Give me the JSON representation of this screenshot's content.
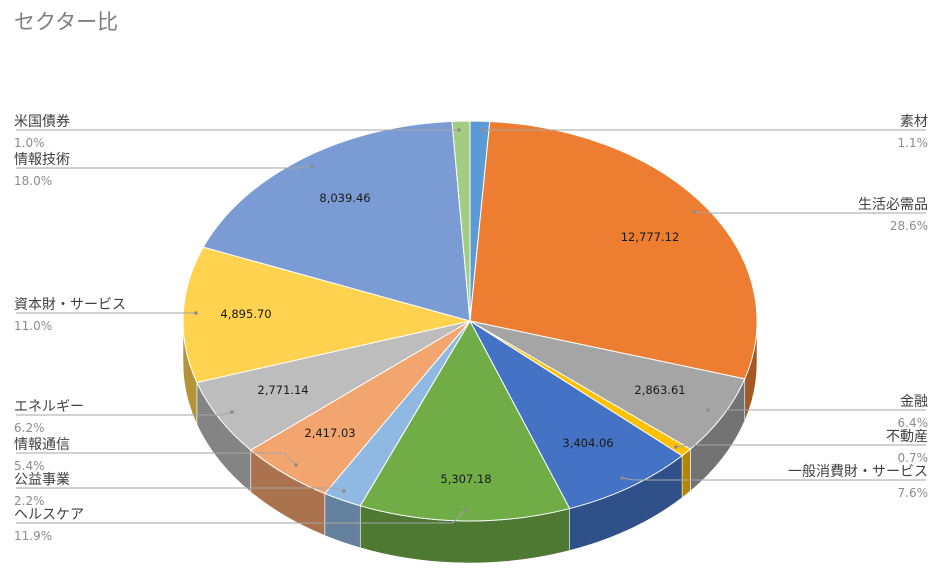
{
  "chart_data": {
    "type": "pie",
    "title": "セクター比",
    "series": [
      {
        "name": "素材",
        "value": null,
        "percent": "1.1%",
        "color": "#5b9bd5"
      },
      {
        "name": "生活必需品",
        "value": "12,777.12",
        "percent": "28.6%",
        "color": "#ed7d31"
      },
      {
        "name": "金融",
        "value": "2,863.61",
        "percent": "6.4%",
        "color": "#a5a5a5"
      },
      {
        "name": "不動産",
        "value": null,
        "percent": "0.7%",
        "color": "#ffc000"
      },
      {
        "name": "一般消費財・サービス",
        "value": "3,404.06",
        "percent": "7.6%",
        "color": "#4472c4"
      },
      {
        "name": "ヘルスケア",
        "value": "5,307.18",
        "percent": "11.9%",
        "color": "#70ad47"
      },
      {
        "name": "公益事業",
        "value": null,
        "percent": "2.2%",
        "color": "#8fb8e2"
      },
      {
        "name": "情報通信",
        "value": "2,417.03",
        "percent": "5.4%",
        "color": "#f3a56f"
      },
      {
        "name": "エネルギー",
        "value": "2,771.14",
        "percent": "6.2%",
        "color": "#bdbdbd"
      },
      {
        "name": "資本財・サービス",
        "value": "4,895.70",
        "percent": "11.0%",
        "color": "#ffd34f"
      },
      {
        "name": "情報技術",
        "value": "8,039.46",
        "percent": "18.0%",
        "color": "#7b9bd4"
      },
      {
        "name": "米国債券",
        "value": null,
        "percent": "1.0%",
        "color": "#a2cc82"
      }
    ]
  }
}
